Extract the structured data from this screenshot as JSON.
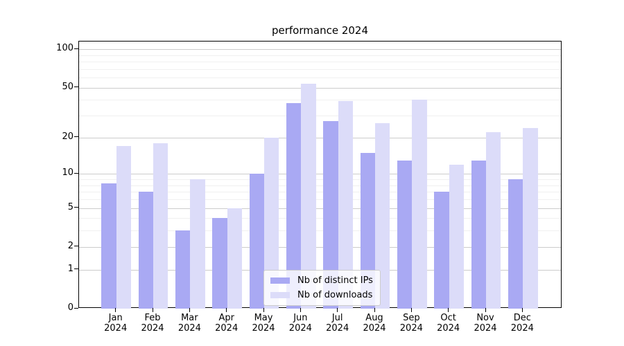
{
  "title": "performance 2024",
  "chart_data": {
    "type": "bar",
    "title": "performance 2024",
    "categories": [
      "Jan",
      "Feb",
      "Mar",
      "Apr",
      "May",
      "Jun",
      "Jul",
      "Aug",
      "Sep",
      "Oct",
      "Nov",
      "Dec"
    ],
    "x_year": "2024",
    "series": [
      {
        "key": "distinct-ips",
        "name": "Nb of distinct IPs",
        "color": "#a9a9f3",
        "values": [
          8.3,
          7,
          3,
          4,
          10,
          38,
          27,
          15,
          13,
          7,
          13,
          9
        ]
      },
      {
        "key": "downloads",
        "name": "Nb of downloads",
        "color": "#dcdcf9",
        "values": [
          17,
          18,
          9,
          5,
          20,
          54,
          39,
          26,
          40,
          12,
          22,
          24
        ]
      }
    ],
    "yscale": "log1p",
    "yticks": [
      0,
      1,
      2,
      5,
      10,
      20,
      50,
      100
    ],
    "minor_yticks": [
      3,
      4,
      6,
      7,
      8,
      9,
      30,
      40,
      60,
      70,
      80,
      90
    ],
    "ylim": [
      0,
      115
    ],
    "grid": "horizontal",
    "legend_position": "lower center",
    "colors": {
      "major_grid": "#cccccc",
      "minor_grid": "#f0f0f0",
      "spine": "#000000",
      "text": "#000000",
      "legend_border": "#cccccc"
    }
  }
}
